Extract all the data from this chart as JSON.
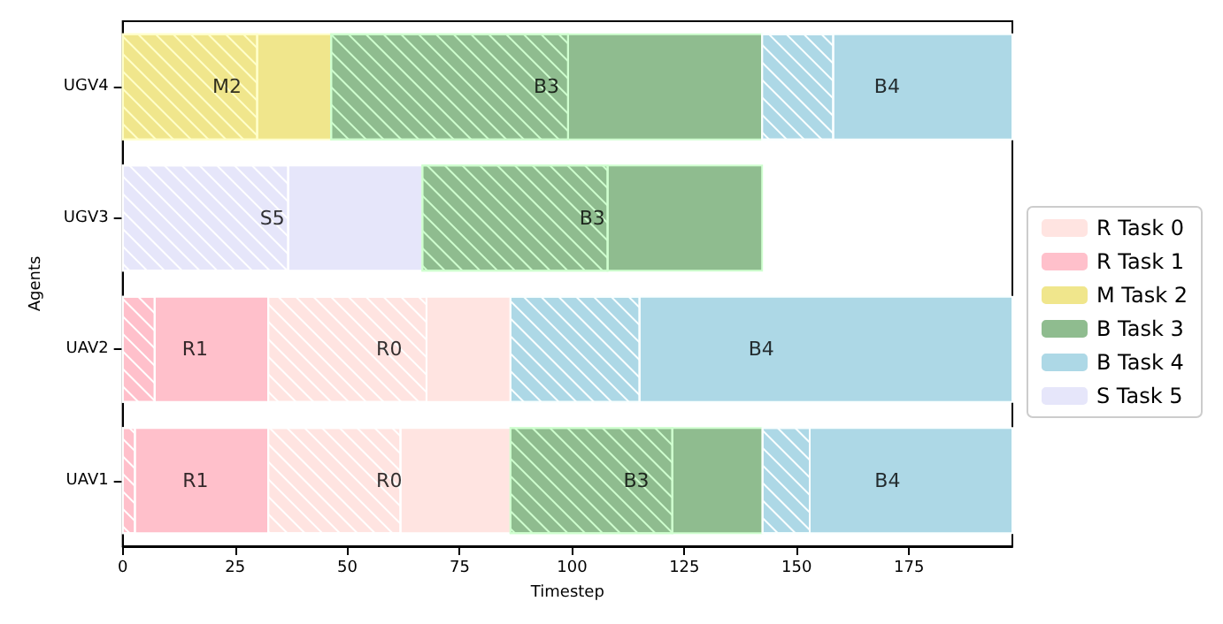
{
  "chart_data": {
    "type": "bar",
    "orientation": "horizontal",
    "xlabel": "Timestep",
    "ylabel": "Agents",
    "categories": [
      "UGV4",
      "UGV3",
      "UAV2",
      "UAV1"
    ],
    "xlim": [
      0,
      198
    ],
    "xticks": [
      0,
      25,
      50,
      75,
      100,
      125,
      150,
      175
    ],
    "grid": false,
    "legend": "right",
    "series": [
      {
        "name": "R Task 0",
        "color": "#ffe4e1",
        "base": [
          null,
          null,
          67.6,
          61.8
        ],
        "values": [
          null,
          null,
          18.7,
          24.5
        ]
      },
      {
        "name": "R Task 1",
        "color": "#ffc0cb",
        "base": [
          null,
          null,
          7.1,
          2.7
        ],
        "values": [
          null,
          null,
          25.3,
          29.7
        ]
      },
      {
        "name": "M Task 2",
        "color": "#f0e68c",
        "base": [
          29.9,
          null,
          null,
          null
        ],
        "values": [
          16.5,
          null,
          null,
          null
        ]
      },
      {
        "name": "B Task 3",
        "color": "#8fbc8f",
        "base": [
          99.1,
          107.9,
          null,
          122.3
        ],
        "values": [
          43.2,
          34.4,
          null,
          20.1
        ]
      },
      {
        "name": "B Task 4",
        "color": "#add8e6",
        "base": [
          158.1,
          null,
          115,
          152.9
        ],
        "values": [
          39.9,
          null,
          83,
          45.1
        ]
      },
      {
        "name": "S Task 5",
        "color": "#e6e6fa",
        "base": [
          null,
          36.8,
          null,
          null
        ],
        "values": [
          null,
          29.9,
          null,
          null
        ]
      },
      {
        "color": "#ffe4e1",
        "base": [
          null,
          null,
          32.4,
          32.4
        ],
        "values": [
          null,
          null,
          35.2,
          29.4
        ]
      },
      {
        "color": "#ffc0cb",
        "base": [
          null,
          null,
          0,
          0
        ],
        "values": [
          null,
          null,
          7.1,
          2.7
        ]
      },
      {
        "color": "#f0e68c",
        "base": [
          0,
          null,
          null,
          null
        ],
        "values": [
          29.9,
          null,
          null,
          null
        ]
      },
      {
        "color": "#8fbc8f",
        "base": [
          46.4,
          66.7,
          null,
          86.3
        ],
        "values": [
          52.7,
          41.2,
          null,
          36
        ]
      },
      {
        "color": "#add8e6",
        "base": [
          142.3,
          null,
          86.3,
          142.4
        ],
        "values": [
          15.8,
          null,
          28.7,
          10.5
        ]
      },
      {
        "color": "#e6e6fa",
        "base": [
          null,
          0,
          null,
          null
        ],
        "values": [
          null,
          36.8,
          null,
          null
        ]
      }
    ],
    "annotations": [
      {
        "text": "M2",
        "x": 23.2,
        "y": "UGV4"
      },
      {
        "text": "B3",
        "x": 94.3,
        "y": "UGV4"
      },
      {
        "text": "B4",
        "x": 170.1,
        "y": "UGV4"
      },
      {
        "text": "S5",
        "x": 33.3,
        "y": "UGV3"
      },
      {
        "text": "B3",
        "x": 104.5,
        "y": "UGV3"
      },
      {
        "text": "R1",
        "x": 16.1,
        "y": "UAV2"
      },
      {
        "text": "R0",
        "x": 59.3,
        "y": "UAV2"
      },
      {
        "text": "B4",
        "x": 142.1,
        "y": "UAV2"
      },
      {
        "text": "R1",
        "x": 16.2,
        "y": "UAV1"
      },
      {
        "text": "R0",
        "x": 59.3,
        "y": "UAV1"
      },
      {
        "text": "B3",
        "x": 114.3,
        "y": "UAV1"
      },
      {
        "text": "B4",
        "x": 170.2,
        "y": "UAV1"
      }
    ]
  }
}
